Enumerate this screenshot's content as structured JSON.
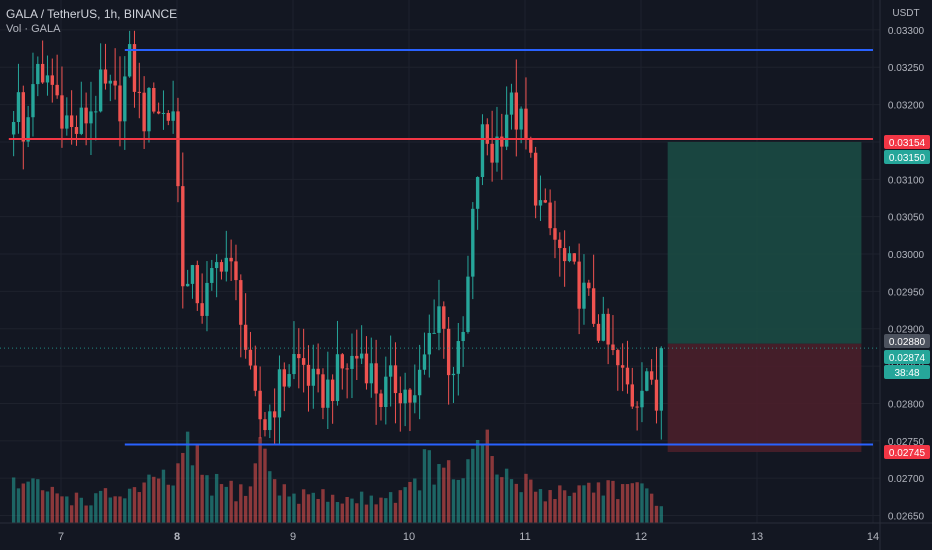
{
  "header": {
    "title": "GALA / TetherUS, 1h, BINANCE",
    "volume_label": "Vol · GALA"
  },
  "colors": {
    "background": "#131722",
    "grid": "#1e222d",
    "up": "#26a69a",
    "down": "#ef5350",
    "support_resistance_line": "#2962ff",
    "entry_line": "#f23645",
    "target_zone": "#1b4d45",
    "stop_zone": "#4a1f2a"
  },
  "chart_data": {
    "type": "candlestick",
    "symbol": "GALA / TetherUS",
    "interval": "1h",
    "exchange": "BINANCE",
    "currency_label": "USDT",
    "x_ticks": [
      "7",
      "8",
      "9",
      "10",
      "11",
      "12",
      "13",
      "14"
    ],
    "y_ticks": [
      "0.03300",
      "0.03250",
      "0.03200",
      "0.03150",
      "0.03100",
      "0.03050",
      "0.03000",
      "0.02950",
      "0.02900",
      "0.02850",
      "0.02800",
      "0.02750",
      "0.02700",
      "0.02650"
    ],
    "ylim": [
      0.0264,
      0.0334
    ],
    "x_range_days": [
      6.55,
      14.0
    ],
    "grid": true,
    "price_labels": [
      {
        "text": "0.03154",
        "color": "#f23645"
      },
      {
        "text": "0.03150",
        "color": "#26a69a"
      },
      {
        "text": "0.02880",
        "color": "#4c525e"
      },
      {
        "text": "0.02874",
        "color": "#26a69a"
      },
      {
        "text": "38:48",
        "color": "#26a69a"
      },
      {
        "text": "0.02745",
        "color": "#f23645"
      }
    ],
    "horizontal_lines": [
      {
        "name": "resistance",
        "price": 0.03273,
        "from_day": 7.55,
        "to_day": 14.0,
        "color": "#2962ff"
      },
      {
        "name": "entry",
        "price": 0.03154,
        "from_day": 6.55,
        "to_day": 14.0,
        "color": "#f23645"
      },
      {
        "name": "support",
        "price": 0.02745,
        "from_day": 7.55,
        "to_day": 14.0,
        "color": "#2962ff"
      }
    ],
    "position": {
      "entry_price": 0.0288,
      "target_price": 0.0315,
      "stop_price": 0.02735,
      "from_day": 12.23,
      "to_day": 13.9
    },
    "current_price": 0.02874,
    "price_path": [
      [
        6.55,
        0.0316
      ],
      [
        6.62,
        0.0322
      ],
      [
        6.68,
        0.0314
      ],
      [
        6.72,
        0.0319
      ],
      [
        6.78,
        0.0327
      ],
      [
        6.82,
        0.032
      ],
      [
        6.88,
        0.0324
      ],
      [
        7.0,
        0.032
      ],
      [
        7.1,
        0.0316
      ],
      [
        7.2,
        0.0318
      ],
      [
        7.35,
        0.0322
      ],
      [
        7.5,
        0.032
      ],
      [
        7.6,
        0.0326
      ],
      [
        7.7,
        0.0318
      ],
      [
        7.8,
        0.0321
      ],
      [
        7.9,
        0.0318
      ],
      [
        7.98,
        0.032
      ],
      [
        8.03,
        0.03
      ],
      [
        8.08,
        0.0295
      ],
      [
        8.15,
        0.0296
      ],
      [
        8.22,
        0.0293
      ],
      [
        8.3,
        0.0296
      ],
      [
        8.4,
        0.0301
      ],
      [
        8.45,
        0.0298
      ],
      [
        8.55,
        0.0293
      ],
      [
        8.65,
        0.028
      ],
      [
        8.75,
        0.0277
      ],
      [
        8.85,
        0.0281
      ],
      [
        9.0,
        0.0286
      ],
      [
        9.1,
        0.0285
      ],
      [
        9.2,
        0.0281
      ],
      [
        9.3,
        0.0282
      ],
      [
        9.45,
        0.0285
      ],
      [
        9.6,
        0.0287
      ],
      [
        9.75,
        0.0281
      ],
      [
        9.9,
        0.0283
      ],
      [
        10.05,
        0.028
      ],
      [
        10.15,
        0.0287
      ],
      [
        10.25,
        0.0294
      ],
      [
        10.35,
        0.0285
      ],
      [
        10.45,
        0.0286
      ],
      [
        10.52,
        0.0298
      ],
      [
        10.58,
        0.031
      ],
      [
        10.65,
        0.0317
      ],
      [
        10.7,
        0.0313
      ],
      [
        10.78,
        0.0316
      ],
      [
        10.85,
        0.032
      ],
      [
        10.95,
        0.0318
      ],
      [
        11.05,
        0.0312
      ],
      [
        11.15,
        0.0305
      ],
      [
        11.25,
        0.0302
      ],
      [
        11.35,
        0.0298
      ],
      [
        11.45,
        0.0296
      ],
      [
        11.55,
        0.0293
      ],
      [
        11.65,
        0.029
      ],
      [
        11.75,
        0.0286
      ],
      [
        11.85,
        0.0283
      ],
      [
        11.95,
        0.028
      ],
      [
        12.0,
        0.0284
      ],
      [
        12.05,
        0.0285
      ],
      [
        12.12,
        0.0278
      ],
      [
        12.2,
        0.02874
      ]
    ],
    "volume_profile": [
      [
        6.55,
        0.55
      ],
      [
        7.2,
        0.3
      ],
      [
        7.6,
        0.4
      ],
      [
        8.0,
        0.6
      ],
      [
        8.08,
        0.95
      ],
      [
        8.3,
        0.5
      ],
      [
        8.6,
        0.4
      ],
      [
        8.72,
        1.0
      ],
      [
        8.9,
        0.4
      ],
      [
        9.5,
        0.3
      ],
      [
        10.0,
        0.4
      ],
      [
        10.15,
        0.8
      ],
      [
        10.3,
        0.6
      ],
      [
        10.5,
        0.7
      ],
      [
        10.65,
        1.0
      ],
      [
        10.8,
        0.6
      ],
      [
        11.2,
        0.4
      ],
      [
        11.7,
        0.5
      ],
      [
        12.0,
        0.4
      ],
      [
        12.22,
        0.3
      ]
    ]
  }
}
